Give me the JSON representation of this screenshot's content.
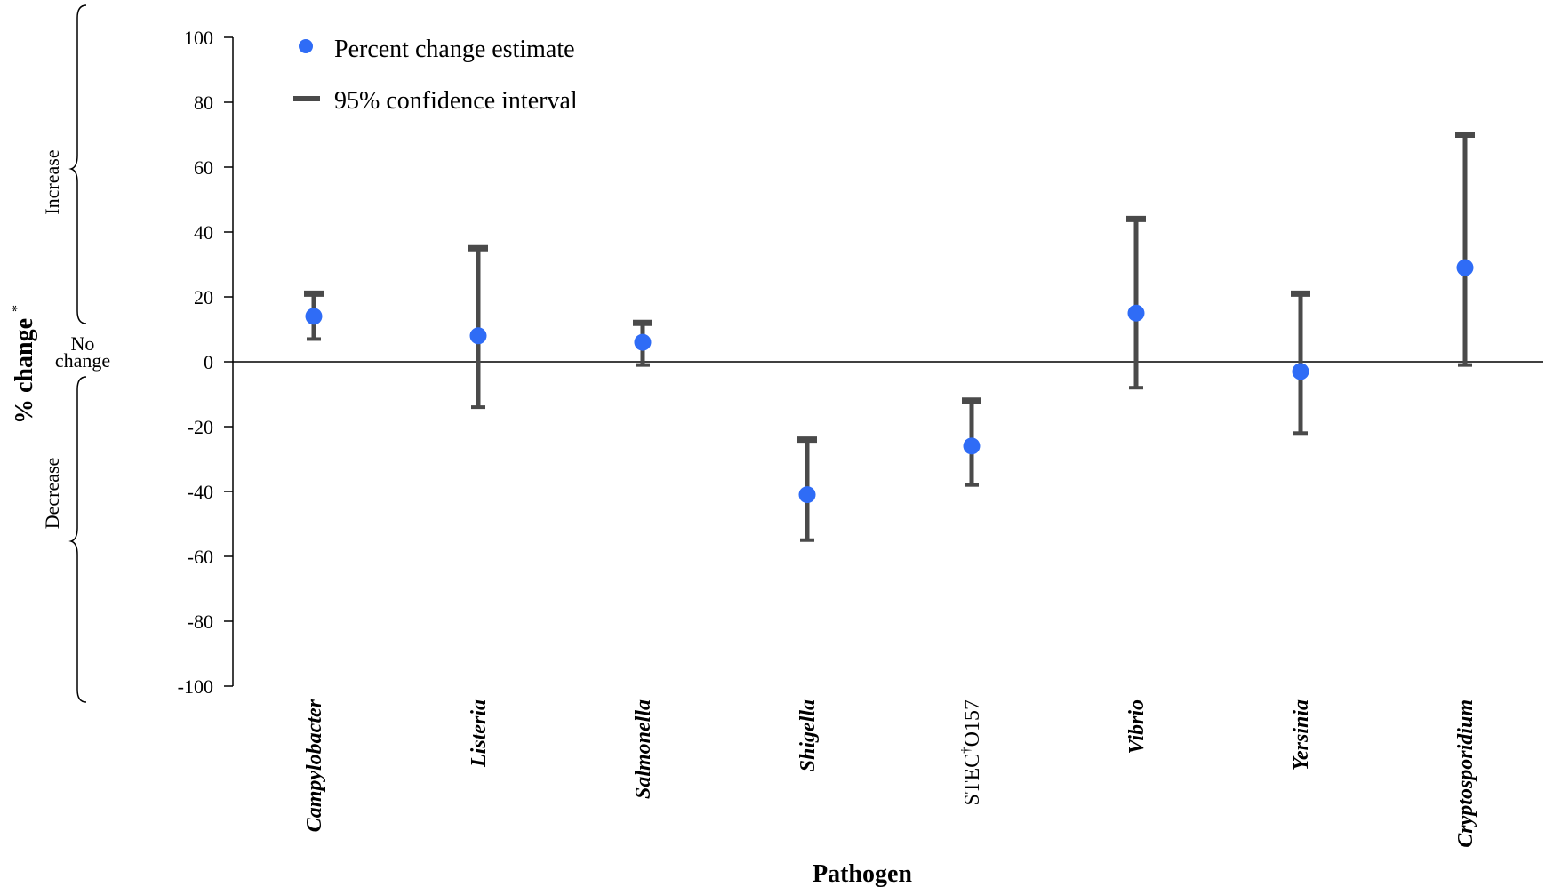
{
  "chart_data": {
    "type": "scatter",
    "xlabel": "Pathogen",
    "ylabel": "% change",
    "ylabel_mark": "*",
    "ylim": [
      -100,
      100
    ],
    "yticks": [
      "100",
      "80",
      "60",
      "40",
      "20",
      "0",
      "-20",
      "-40",
      "-60",
      "-80",
      "-100"
    ],
    "side_labels": {
      "increase": "Increase",
      "no_change_line1": "No",
      "no_change_line2": "change",
      "decrease": "Decrease"
    },
    "legend": {
      "estimate": "Percent change estimate",
      "ci": "95% confidence interval",
      "placement": "top-left"
    },
    "colors": {
      "point": "#2f6cf6",
      "errorbar": "#4a4a4a",
      "axis": "#000000"
    },
    "categories": [
      {
        "label": "Campylobacter",
        "italic": true,
        "value": 14,
        "lower": 7,
        "upper": 21
      },
      {
        "label": "Listeria",
        "italic": true,
        "value": 8,
        "lower": -14,
        "upper": 35
      },
      {
        "label": "Salmonella",
        "italic": true,
        "value": 6,
        "lower": -1,
        "upper": 12
      },
      {
        "label": "Shigella",
        "italic": true,
        "value": -41,
        "lower": -55,
        "upper": -24
      },
      {
        "label_main": "STEC",
        "label_mark": "†",
        "label_tail": "O157",
        "italic": false,
        "value": -26,
        "lower": -38,
        "upper": -12
      },
      {
        "label": "Vibrio",
        "italic": true,
        "value": 15,
        "lower": -8,
        "upper": 44
      },
      {
        "label": "Yersinia",
        "italic": true,
        "value": -3,
        "lower": -22,
        "upper": 21
      },
      {
        "label": "Cryptosporidium",
        "italic": true,
        "value": 29,
        "lower": -1,
        "upper": 70
      }
    ]
  }
}
